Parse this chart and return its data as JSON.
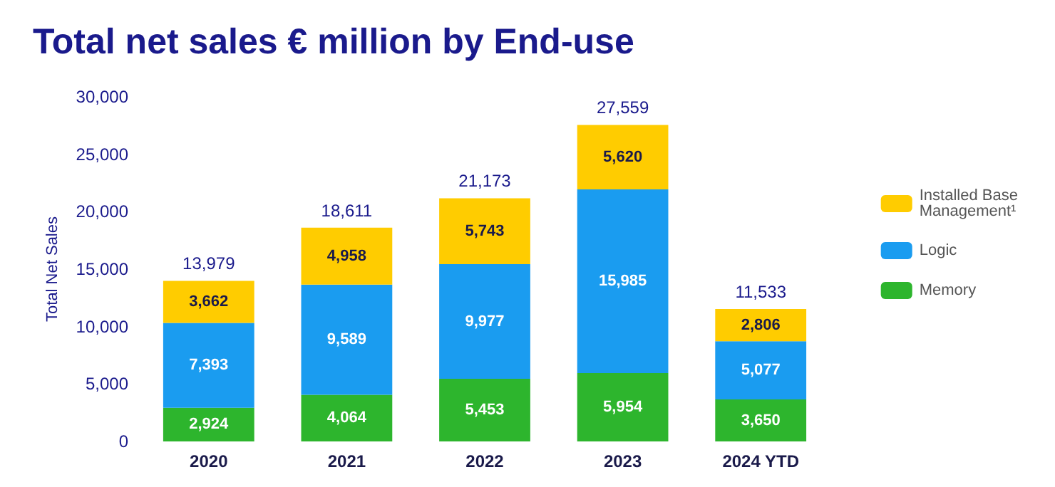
{
  "chart_data": {
    "type": "bar",
    "title": "Total net sales € million by End-use",
    "ylabel": "Total Net Sales",
    "categories": [
      "2020",
      "2021",
      "2022",
      "2023",
      "2024 YTD"
    ],
    "stacked": true,
    "series": [
      {
        "name": "Memory",
        "color": "#2db52d",
        "values": [
          2924,
          4064,
          5453,
          5954,
          3650
        ],
        "value_labels": [
          "2,924",
          "4,064",
          "5,453",
          "5,954",
          "3,650"
        ]
      },
      {
        "name": "Logic",
        "color": "#1a9cf0",
        "values": [
          7393,
          9589,
          9977,
          15985,
          5077
        ],
        "value_labels": [
          "7,393",
          "9,589",
          "9,977",
          "15,985",
          "5,077"
        ]
      },
      {
        "name": "Installed Base Management¹",
        "color": "#ffcc00",
        "values": [
          3662,
          4958,
          5743,
          5620,
          2806
        ],
        "value_labels": [
          "3,662",
          "4,958",
          "5,743",
          "5,620",
          "2,806"
        ]
      }
    ],
    "totals": [
      "13,979",
      "18,611",
      "21,173",
      "27,559",
      "11,533"
    ],
    "ylim": [
      0,
      30000
    ],
    "yticks": [
      0,
      {
        "value": 5000,
        "label": "5,000"
      },
      {
        "value": 10000,
        "label": "10,000"
      },
      {
        "value": 15000,
        "label": "15,000"
      },
      {
        "value": 20000,
        "label": "20,000"
      },
      {
        "value": 25000,
        "label": "25,000"
      },
      {
        "value": 30000,
        "label": "30,000"
      }
    ],
    "grid": false,
    "legend": "right"
  }
}
